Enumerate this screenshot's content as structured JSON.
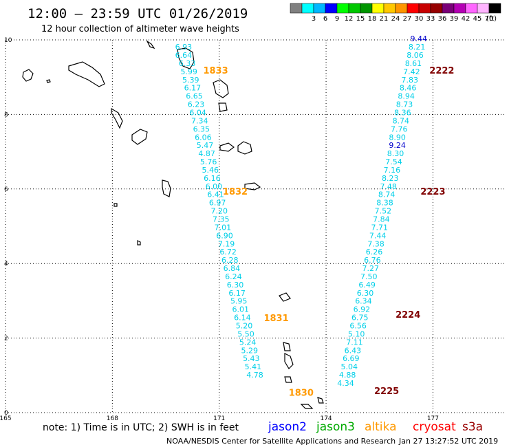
{
  "header": {
    "title": "12:00 – 23:59 UTC 01/26/2019",
    "subtitle": "12 hour collection of altimeter wave heights"
  },
  "colorbar": {
    "unit_label": "(ft)",
    "segments": [
      {
        "color": "#808080",
        "label": ""
      },
      {
        "color": "#00ffff",
        "label": "3"
      },
      {
        "color": "#00b7ff",
        "label": "6"
      },
      {
        "color": "#0000ff",
        "label": "9"
      },
      {
        "color": "#00ff00",
        "label": "12"
      },
      {
        "color": "#00c800",
        "label": "15"
      },
      {
        "color": "#009600",
        "label": "18"
      },
      {
        "color": "#ffff00",
        "label": "21"
      },
      {
        "color": "#ffc800",
        "label": "24"
      },
      {
        "color": "#ff9600",
        "label": "27"
      },
      {
        "color": "#ff0000",
        "label": "30"
      },
      {
        "color": "#c80000",
        "label": "33"
      },
      {
        "color": "#960000",
        "label": "36"
      },
      {
        "color": "#7a0078",
        "label": "39"
      },
      {
        "color": "#b400b4",
        "label": "42"
      },
      {
        "color": "#ff66ff",
        "label": "45"
      },
      {
        "color": "#ffb4ff",
        "label": "70"
      },
      {
        "color": "#000000",
        "label": ""
      }
    ]
  },
  "chart_data": {
    "type": "scatter",
    "xlim": [
      165,
      179
    ],
    "ylim": [
      0,
      10
    ],
    "x_ticks": [
      "165",
      "168",
      "171",
      "174",
      "177"
    ],
    "y_ticks": [
      "0",
      "2",
      "4",
      "6",
      "8",
      "10"
    ],
    "grid": true,
    "series": [
      {
        "name": "jason3",
        "color": "#00cfe8",
        "points": [
          {
            "x": 170.0,
            "y": 9.74,
            "v": "6.93"
          },
          {
            "x": 170.0,
            "y": 9.52,
            "v": "6.64"
          },
          {
            "x": 170.1,
            "y": 9.3,
            "v": "6.33"
          },
          {
            "x": 170.15,
            "y": 9.08,
            "v": "5.99"
          },
          {
            "x": 170.2,
            "y": 8.86,
            "v": "5.39"
          },
          {
            "x": 170.25,
            "y": 8.64,
            "v": "6.17"
          },
          {
            "x": 170.3,
            "y": 8.42,
            "v": "6.65"
          },
          {
            "x": 170.35,
            "y": 8.2,
            "v": "6.23"
          },
          {
            "x": 170.4,
            "y": 7.98,
            "v": "6.04"
          },
          {
            "x": 170.45,
            "y": 7.76,
            "v": "7.34"
          },
          {
            "x": 170.5,
            "y": 7.54,
            "v": "6.35"
          },
          {
            "x": 170.55,
            "y": 7.32,
            "v": "6.06"
          },
          {
            "x": 170.6,
            "y": 7.1,
            "v": "5.47"
          },
          {
            "x": 170.65,
            "y": 6.88,
            "v": "4.87"
          },
          {
            "x": 170.7,
            "y": 6.66,
            "v": "5.76"
          },
          {
            "x": 170.75,
            "y": 6.44,
            "v": "5.46"
          },
          {
            "x": 170.8,
            "y": 6.22,
            "v": "6.16"
          },
          {
            "x": 170.85,
            "y": 6.0,
            "v": "6.00"
          },
          {
            "x": 170.9,
            "y": 5.78,
            "v": "6.41"
          },
          {
            "x": 170.95,
            "y": 5.56,
            "v": "6.97"
          },
          {
            "x": 171.0,
            "y": 5.34,
            "v": "7.20"
          },
          {
            "x": 171.05,
            "y": 5.12,
            "v": "7.35"
          },
          {
            "x": 171.1,
            "y": 4.9,
            "v": "7.01"
          },
          {
            "x": 171.15,
            "y": 4.68,
            "v": "6.90"
          },
          {
            "x": 171.2,
            "y": 4.46,
            "v": "7.19"
          },
          {
            "x": 171.25,
            "y": 4.24,
            "v": "6.72"
          },
          {
            "x": 171.3,
            "y": 4.02,
            "v": "6.28"
          },
          {
            "x": 171.35,
            "y": 3.8,
            "v": "6.84"
          },
          {
            "x": 171.4,
            "y": 3.58,
            "v": "6.24"
          },
          {
            "x": 171.45,
            "y": 3.36,
            "v": "6.30"
          },
          {
            "x": 171.5,
            "y": 3.14,
            "v": "6.17"
          },
          {
            "x": 171.55,
            "y": 2.92,
            "v": "5.95"
          },
          {
            "x": 171.6,
            "y": 2.7,
            "v": "6.01"
          },
          {
            "x": 171.65,
            "y": 2.48,
            "v": "6.14"
          },
          {
            "x": 171.7,
            "y": 2.26,
            "v": "5.20"
          },
          {
            "x": 171.75,
            "y": 2.04,
            "v": "5.50"
          },
          {
            "x": 171.8,
            "y": 1.82,
            "v": "5.24"
          },
          {
            "x": 171.85,
            "y": 1.6,
            "v": "5.29"
          },
          {
            "x": 171.9,
            "y": 1.38,
            "v": "5.43"
          },
          {
            "x": 171.95,
            "y": 1.16,
            "v": "5.41"
          },
          {
            "x": 172.0,
            "y": 0.94,
            "v": "4.78"
          },
          {
            "x": 176.55,
            "y": 9.74,
            "v": "8.21"
          },
          {
            "x": 176.5,
            "y": 9.52,
            "v": "8.06"
          },
          {
            "x": 176.45,
            "y": 9.3,
            "v": "8.61"
          },
          {
            "x": 176.4,
            "y": 9.08,
            "v": "7.42"
          },
          {
            "x": 176.35,
            "y": 8.86,
            "v": "7.83"
          },
          {
            "x": 176.3,
            "y": 8.64,
            "v": "8.46"
          },
          {
            "x": 176.25,
            "y": 8.42,
            "v": "8.94"
          },
          {
            "x": 176.2,
            "y": 8.2,
            "v": "8.73"
          },
          {
            "x": 176.15,
            "y": 7.98,
            "v": "8.36"
          },
          {
            "x": 176.1,
            "y": 7.76,
            "v": "8.74"
          },
          {
            "x": 176.05,
            "y": 7.54,
            "v": "7.76"
          },
          {
            "x": 176.0,
            "y": 7.32,
            "v": "8.90"
          },
          {
            "x": 175.95,
            "y": 6.88,
            "v": "8.30"
          },
          {
            "x": 175.9,
            "y": 6.66,
            "v": "7.54"
          },
          {
            "x": 175.85,
            "y": 6.44,
            "v": "7.16"
          },
          {
            "x": 175.8,
            "y": 6.22,
            "v": "8.23"
          },
          {
            "x": 175.75,
            "y": 6.0,
            "v": "7.48"
          },
          {
            "x": 175.7,
            "y": 5.78,
            "v": "8.74"
          },
          {
            "x": 175.65,
            "y": 5.56,
            "v": "8.38"
          },
          {
            "x": 175.6,
            "y": 5.34,
            "v": "7.52"
          },
          {
            "x": 175.55,
            "y": 5.12,
            "v": "7.84"
          },
          {
            "x": 175.5,
            "y": 4.9,
            "v": "7.71"
          },
          {
            "x": 175.45,
            "y": 4.68,
            "v": "7.44"
          },
          {
            "x": 175.4,
            "y": 4.46,
            "v": "7.38"
          },
          {
            "x": 175.35,
            "y": 4.24,
            "v": "6.26"
          },
          {
            "x": 175.3,
            "y": 4.02,
            "v": "6.76"
          },
          {
            "x": 175.25,
            "y": 3.8,
            "v": "7.27"
          },
          {
            "x": 175.2,
            "y": 3.58,
            "v": "7.50"
          },
          {
            "x": 175.15,
            "y": 3.36,
            "v": "6.49"
          },
          {
            "x": 175.1,
            "y": 3.14,
            "v": "6.30"
          },
          {
            "x": 175.05,
            "y": 2.92,
            "v": "6.34"
          },
          {
            "x": 175.0,
            "y": 2.7,
            "v": "6.92"
          },
          {
            "x": 174.95,
            "y": 2.48,
            "v": "6.75"
          },
          {
            "x": 174.9,
            "y": 2.26,
            "v": "6.56"
          },
          {
            "x": 174.85,
            "y": 2.04,
            "v": "5.10"
          },
          {
            "x": 174.8,
            "y": 1.82,
            "v": "7.11"
          },
          {
            "x": 174.75,
            "y": 1.6,
            "v": "6.43"
          },
          {
            "x": 174.7,
            "y": 1.38,
            "v": "6.69"
          },
          {
            "x": 174.65,
            "y": 1.16,
            "v": "5.04"
          },
          {
            "x": 174.6,
            "y": 0.94,
            "v": "4.88"
          },
          {
            "x": 174.55,
            "y": 0.72,
            "v": "4.34"
          }
        ]
      },
      {
        "name": "jason2",
        "color": "#0000cc",
        "points": [
          {
            "x": 176.6,
            "y": 9.96,
            "v": "9.44"
          },
          {
            "x": 176.0,
            "y": 7.1,
            "v": "9.24"
          }
        ]
      }
    ],
    "pass_labels": [
      {
        "x": 170.9,
        "y": 9.1,
        "text": "1833",
        "color": "#ff9900"
      },
      {
        "x": 171.45,
        "y": 5.85,
        "text": "1832",
        "color": "#ff9900"
      },
      {
        "x": 172.6,
        "y": 2.45,
        "text": "1831",
        "color": "#ff9900"
      },
      {
        "x": 173.3,
        "y": 0.45,
        "text": "1830",
        "color": "#ff9900"
      },
      {
        "x": 177.25,
        "y": 9.1,
        "text": "2222",
        "color": "#800000"
      },
      {
        "x": 177.0,
        "y": 5.85,
        "text": "2223",
        "color": "#800000"
      },
      {
        "x": 176.3,
        "y": 2.55,
        "text": "2224",
        "color": "#800000"
      },
      {
        "x": 175.7,
        "y": 0.5,
        "text": "2225",
        "color": "#800000"
      }
    ]
  },
  "note": "note: 1) Time is in UTC; 2) SWH is in feet",
  "satellites": [
    {
      "label": "jason2",
      "color": "#0000ff"
    },
    {
      "label": "jason3",
      "color": "#00aa00"
    },
    {
      "label": "altika",
      "color": "#ff9900"
    },
    {
      "label": "cryosat",
      "color": "#ff0000"
    },
    {
      "label": "s3a",
      "color": "#990000"
    }
  ],
  "footer": {
    "credit": "NOAA/NESDIS Center for Satellite Applications and Research",
    "timestamp": "Jan 27 13:27:52 UTC 2019"
  }
}
